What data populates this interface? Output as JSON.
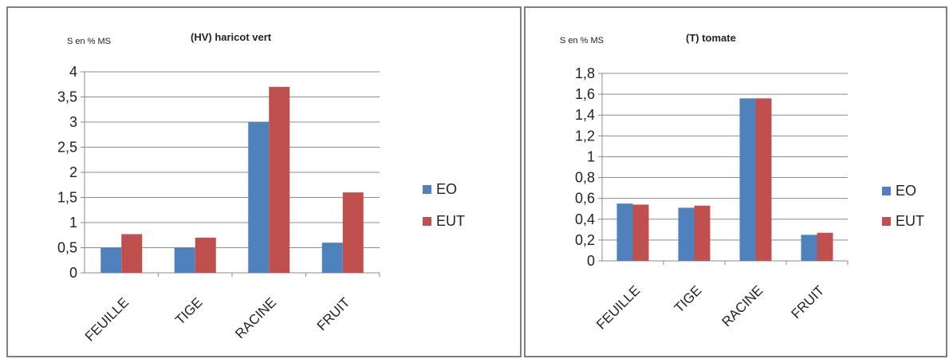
{
  "colors": {
    "EO": "#4f81bd",
    "EUT": "#c0504d",
    "grid": "#8c8c8c",
    "axis": "#8c8c8c"
  },
  "chart_data": [
    {
      "type": "bar",
      "unit_label": "S en % MS",
      "title": "(HV) haricot vert",
      "categories": [
        "FEUILLE",
        "TIGE",
        "RACINE",
        "FRUIT"
      ],
      "series": [
        {
          "name": "EO",
          "values": [
            0.5,
            0.5,
            3.0,
            0.6
          ]
        },
        {
          "name": "EUT",
          "values": [
            0.77,
            0.7,
            3.7,
            1.6
          ]
        }
      ],
      "ylim": [
        0,
        4
      ],
      "yticks": [
        0,
        0.5,
        1,
        1.5,
        2,
        2.5,
        3,
        3.5,
        4
      ],
      "ytick_labels": [
        "0",
        "0,5",
        "1",
        "1,5",
        "2",
        "2,5",
        "3",
        "3,5",
        "4"
      ],
      "grid": true,
      "legend": "right"
    },
    {
      "type": "bar",
      "unit_label": "S en % MS",
      "title": "(T) tomate",
      "categories": [
        "FEUILLE",
        "TIGE",
        "RACINE",
        "FRUIT"
      ],
      "series": [
        {
          "name": "EO",
          "values": [
            0.55,
            0.51,
            1.56,
            0.25
          ]
        },
        {
          "name": "EUT",
          "values": [
            0.54,
            0.53,
            1.56,
            0.27
          ]
        }
      ],
      "ylim": [
        0,
        1.8
      ],
      "yticks": [
        0,
        0.2,
        0.4,
        0.6,
        0.8,
        1,
        1.2,
        1.4,
        1.6,
        1.8
      ],
      "ytick_labels": [
        "0",
        "0,2",
        "0,4",
        "0,6",
        "0,8",
        "1",
        "1,2",
        "1,4",
        "1,6",
        "1,8"
      ],
      "grid": true,
      "legend": "right"
    }
  ]
}
